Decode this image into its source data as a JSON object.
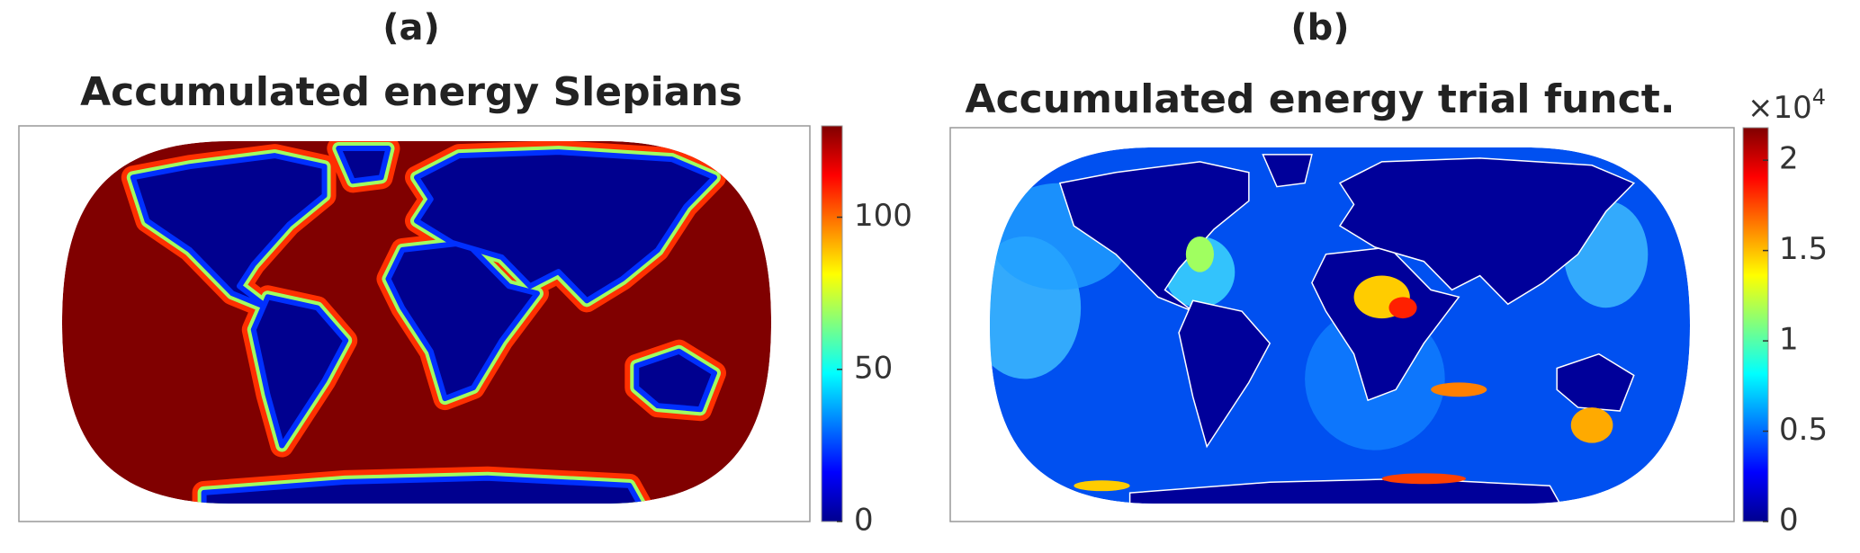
{
  "chart_data": [
    {
      "type": "map",
      "label": "(a)",
      "title": "Accumulated energy Slepians",
      "clim": [
        0,
        130
      ],
      "cticks": [
        0,
        50,
        100
      ]
    },
    {
      "type": "map",
      "label": "(b)",
      "title": "Accumulated energy trial funct.",
      "clim": [
        0,
        21800
      ],
      "cticks": [
        {
          "value": 0,
          "label": "0"
        },
        {
          "value": 5000,
          "label": "0.5"
        },
        {
          "value": 10000,
          "label": "1"
        },
        {
          "value": 15000,
          "label": "1.5"
        },
        {
          "value": 20000,
          "label": "2"
        }
      ],
      "scale_base": "×10",
      "scale_power": "4"
    }
  ]
}
